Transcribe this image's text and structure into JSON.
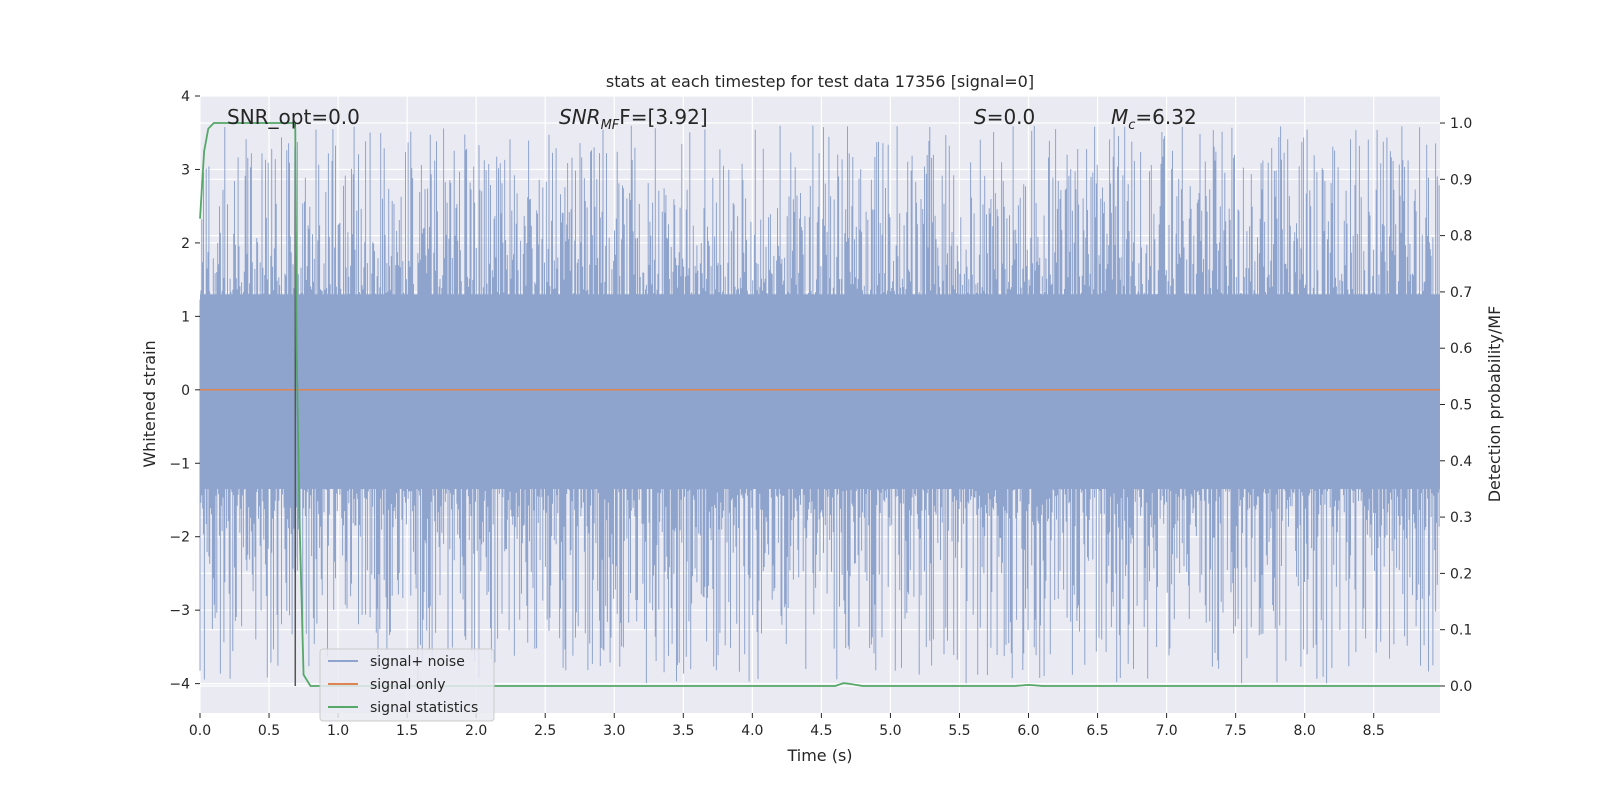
{
  "chart_data": {
    "type": "line",
    "title": "stats at each timestep for test data 17356 [signal=0]",
    "xlabel": "Time (s)",
    "ylabel": "Whitened strain",
    "y2label": "Detection probability/MF",
    "xlim": [
      0.0,
      8.98
    ],
    "ylim": [
      -4.4,
      4.0
    ],
    "y2lim": [
      -0.048,
      1.048
    ],
    "xticks": [
      "0.0",
      "0.5",
      "1.0",
      "1.5",
      "2.0",
      "2.5",
      "3.0",
      "3.5",
      "4.0",
      "4.5",
      "5.0",
      "5.5",
      "6.0",
      "6.5",
      "7.0",
      "7.5",
      "8.0",
      "8.5"
    ],
    "yticks": [
      "4",
      "3",
      "2",
      "1",
      "0",
      "−1",
      "−2",
      "−3",
      "−4"
    ],
    "y2ticks": [
      "1.0",
      "0.9",
      "0.8",
      "0.7",
      "0.6",
      "0.5",
      "0.4",
      "0.3",
      "0.2",
      "0.1",
      "0.0"
    ],
    "grid": true,
    "legend_position": "lower-left",
    "annotations": {
      "snr_opt": "SNR_opt=0.0",
      "snr_mf_main": "SNR",
      "snr_mf_sub": "MF",
      "snr_mf_value": "F=[3.92]",
      "s_var": "S",
      "s_value": "=0.0",
      "mc_main": "M",
      "mc_sub": "c",
      "mc_value": "=6.32"
    },
    "marker_line_x": 0.69,
    "series": [
      {
        "name": "signal+ noise",
        "color": "#8fa4cc",
        "kind": "noise-band",
        "description_values": {
          "upper_envelope_range": [
            1.2,
            3.6
          ],
          "lower_envelope_range": [
            -4.0,
            -1.3
          ]
        }
      },
      {
        "name": "signal only",
        "color": "#dd8452",
        "x": [
          0.0,
          8.98
        ],
        "y": [
          0.0,
          0.0
        ]
      },
      {
        "name": "signal statistics",
        "color": "#55a868",
        "axis": "right",
        "x": [
          0.0,
          0.03,
          0.06,
          0.1,
          0.2,
          0.3,
          0.4,
          0.5,
          0.6,
          0.68,
          0.69,
          0.7,
          0.72,
          0.75,
          0.8,
          0.9,
          1.5,
          2.5,
          3.5,
          4.5,
          4.6,
          4.66,
          4.7,
          4.8,
          5.0,
          5.5,
          5.9,
          6.0,
          6.05,
          6.1,
          6.5,
          7.5,
          8.5,
          8.98
        ],
        "y": [
          0.83,
          0.95,
          0.99,
          1.0,
          1.0,
          1.0,
          1.0,
          1.0,
          1.0,
          1.0,
          0.99,
          0.6,
          0.3,
          0.02,
          0.0,
          0.0,
          0.0,
          0.0,
          0.0,
          0.0,
          0.0,
          0.005,
          0.004,
          0.0,
          0.0,
          0.0,
          0.0,
          0.002,
          0.001,
          0.0,
          0.0,
          0.0,
          0.0,
          0.0
        ]
      }
    ]
  }
}
